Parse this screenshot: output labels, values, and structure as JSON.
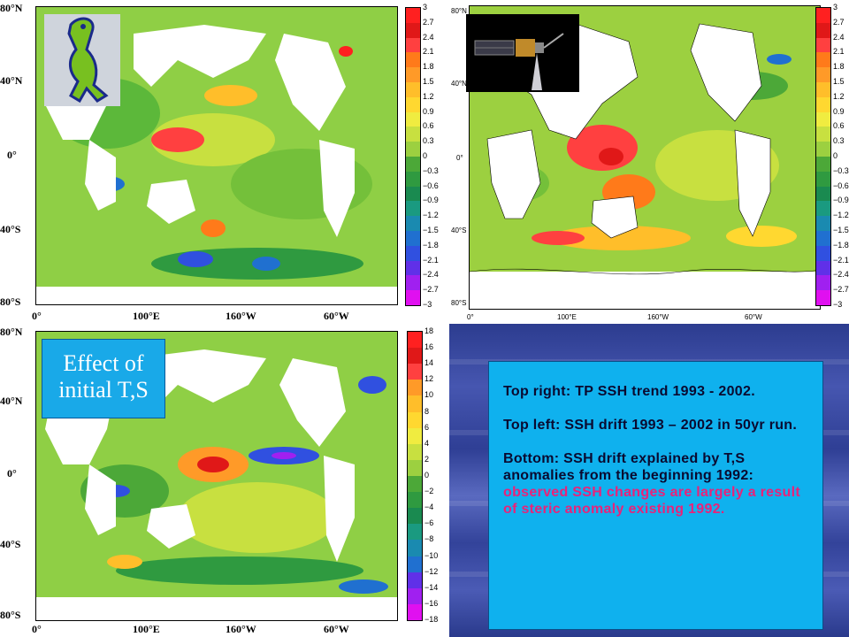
{
  "top_left": {
    "lat_labels": [
      "80°N",
      "40°N",
      "0°",
      "40°S",
      "80°S"
    ],
    "lon_labels": [
      "0°",
      "100°E",
      "160°W",
      "60°W"
    ],
    "colorbar_labels": [
      "3",
      "2.7",
      "2.4",
      "2.1",
      "1.8",
      "1.5",
      "1.2",
      "0.9",
      "0.6",
      "0.3",
      "0",
      "−0.3",
      "−0.6",
      "−0.9",
      "−1.2",
      "−1.5",
      "−1.8",
      "−2.1",
      "−2.4",
      "−2.7",
      "−3"
    ]
  },
  "top_right": {
    "lat_labels": [
      "80°N",
      "40°N",
      "0°",
      "40°S",
      "80°S"
    ],
    "lon_labels": [
      "0°",
      "100°E",
      "160°W",
      "60°W"
    ],
    "colorbar_labels": [
      "3",
      "2.7",
      "2.4",
      "2.1",
      "1.8",
      "1.5",
      "1.2",
      "0.9",
      "0.6",
      "0.3",
      "0",
      "−0.3",
      "−0.6",
      "−0.9",
      "−1.2",
      "−1.5",
      "−1.8",
      "−2.1",
      "−2.4",
      "−2.7",
      "−3"
    ]
  },
  "bottom": {
    "lat_labels": [
      "80°N",
      "40°N",
      "0°",
      "40°S",
      "80°S"
    ],
    "lon_labels": [
      "0°",
      "100°E",
      "160°W",
      "60°W"
    ],
    "colorbar_labels": [
      "18",
      "16",
      "14",
      "12",
      "10",
      "8",
      "6",
      "4",
      "2",
      "0",
      "−2",
      "−4",
      "−6",
      "−8",
      "−10",
      "−12",
      "−14",
      "−16",
      "−18"
    ],
    "overlay_line1": "Effect of",
    "overlay_line2": "initial T,S"
  },
  "colors": {
    "scale": [
      "#ff2020",
      "#e01818",
      "#ff4040",
      "#ff7a1a",
      "#ff9a28",
      "#ffbe2a",
      "#ffd830",
      "#f0ec40",
      "#c8e040",
      "#9cd040",
      "#74c03a",
      "#4ca838",
      "#2f9a40",
      "#1a8a50",
      "#1a9a80",
      "#1a8ab0",
      "#2070d0",
      "#3050e0",
      "#6030e8",
      "#a020f0",
      "#e010f0"
    ]
  },
  "notes": {
    "p1": "Top right: TP SSH trend 1993 - 2002.",
    "p2": "Top left: SSH drift 1993 – 2002 in 50yr run.",
    "p3_a": "Bottom: SSH drift explained by T,S anomalies from the beginning 1992: ",
    "p3_b": "observed SSH changes are largely a result of steric anomaly existing 1992."
  },
  "icons": {
    "top_left_logo": "gecko-logo-icon",
    "top_right_logo": "satellite-icon"
  }
}
